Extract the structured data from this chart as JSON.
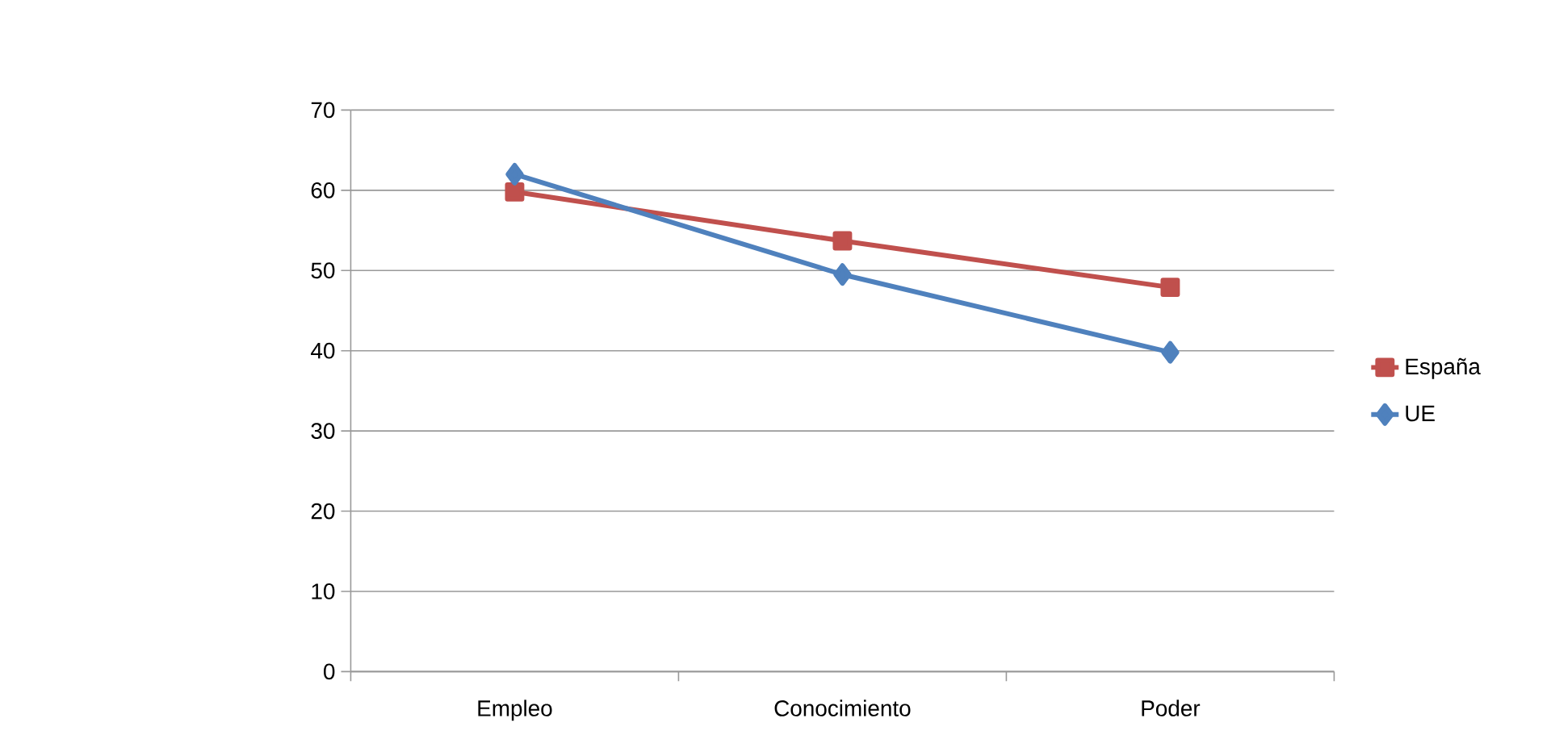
{
  "chart_data": {
    "type": "line",
    "categories": [
      "Empleo",
      "Conocimiento",
      "Poder"
    ],
    "series": [
      {
        "name": "España",
        "color": "#c0504d",
        "marker": "square",
        "values": [
          59.8,
          53.7,
          47.9
        ]
      },
      {
        "name": "UE",
        "color": "#4f81bd",
        "marker": "diamond",
        "values": [
          62.0,
          49.5,
          39.8
        ]
      }
    ],
    "ylim": [
      0,
      70
    ],
    "yticks": [
      0,
      10,
      20,
      30,
      40,
      50,
      60,
      70
    ],
    "grid": "y",
    "legend": "right",
    "line_style": "solid"
  }
}
